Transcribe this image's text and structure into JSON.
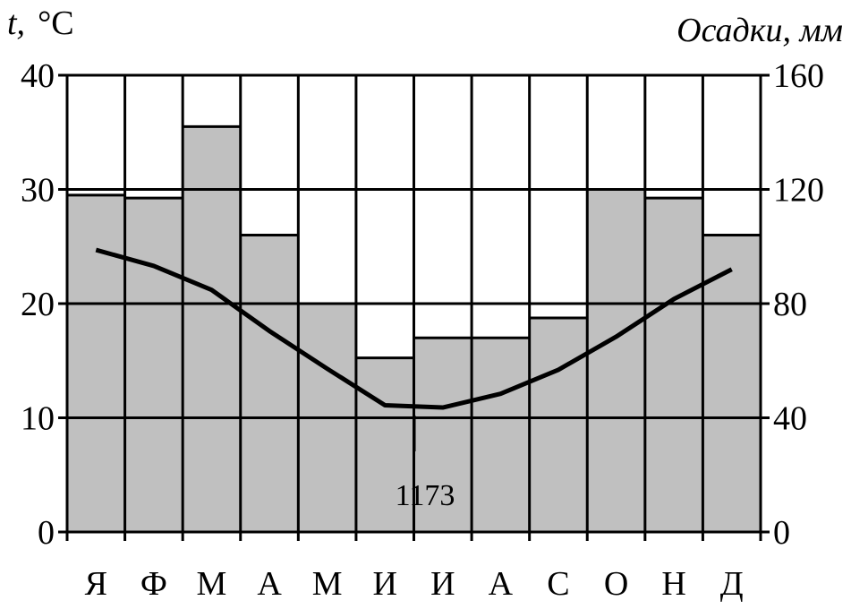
{
  "chart_data": {
    "type": "bar",
    "categories": [
      "Я",
      "Ф",
      "М",
      "А",
      "М",
      "И",
      "И",
      "А",
      "С",
      "О",
      "Н",
      "Д"
    ],
    "series": [
      {
        "type": "bar",
        "axis": "right",
        "values": [
          118,
          117,
          142,
          104,
          80,
          61,
          68,
          68,
          75,
          120,
          117,
          104
        ]
      },
      {
        "type": "line",
        "axis": "left",
        "values": [
          24.7,
          23.3,
          21.2,
          17.6,
          14.3,
          11.1,
          10.9,
          12.1,
          14.2,
          17.1,
          20.4,
          23.0
        ]
      }
    ],
    "y_left": {
      "label_var": "t,",
      "label_unit": "°C",
      "ticks": [
        0,
        10,
        20,
        30,
        40
      ],
      "lim": [
        0,
        40
      ]
    },
    "y_right": {
      "label": "Осадки, мм",
      "ticks": [
        0,
        40,
        80,
        120,
        160
      ],
      "lim": [
        0,
        160
      ]
    },
    "annotation": "1173",
    "grid": true,
    "colors": {
      "bar": "#c0c0c0",
      "line": "#000000",
      "grid": "#000000"
    }
  }
}
